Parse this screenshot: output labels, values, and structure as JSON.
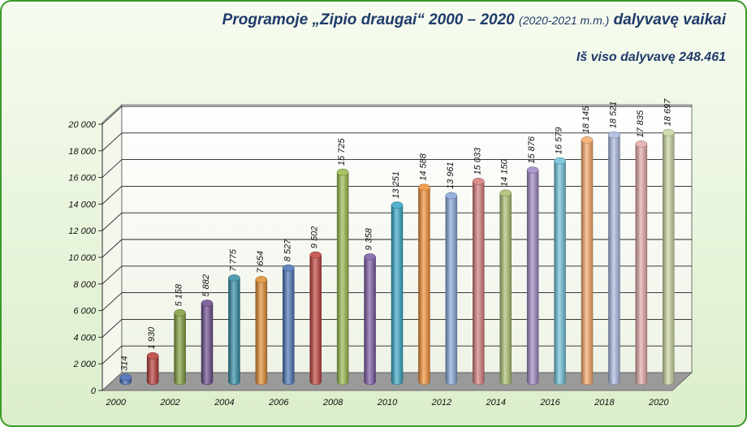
{
  "header": {
    "title_main": "Programoje „Zipio draugai“ 2000 – 2020",
    "title_sub": "(2020-2021 m.m.)",
    "title_end": "dalyvavę vaikai",
    "total": "Iš viso dalyvavę 248.461"
  },
  "chart_data": {
    "type": "bar",
    "title": "Programoje „Zipio draugai“ 2000 – 2020 (2020-2021 m.m.) dalyvavę vaikai",
    "categories": [
      "2000",
      "2001",
      "2002",
      "2003",
      "2004",
      "2005",
      "2006",
      "2007",
      "2008",
      "2009",
      "2010",
      "2011",
      "2012",
      "2013",
      "2014",
      "2015",
      "2016",
      "2017",
      "2018",
      "2019",
      "2020"
    ],
    "values": [
      314,
      1930,
      5158,
      5882,
      7775,
      7654,
      8527,
      9502,
      15725,
      9358,
      13251,
      14588,
      13961,
      15033,
      14150,
      15876,
      16579,
      18145,
      18521,
      17835,
      18697
    ],
    "value_labels": [
      "314",
      "1 930",
      "5 158",
      "5 882",
      "7 775",
      "7 654",
      "8 527",
      "9 502",
      "15 725",
      "9 358",
      "13 251",
      "14 588",
      "13 961",
      "15 033",
      "14 150",
      "15 876",
      "16 579",
      "18 145",
      "18 521",
      "17 835",
      "18 697"
    ],
    "x_tick_labels": [
      "2000",
      "",
      "2002",
      "",
      "2004",
      "",
      "2006",
      "",
      "2008",
      "",
      "2010",
      "",
      "2012",
      "",
      "2014",
      "",
      "2016",
      "",
      "2018",
      "",
      "2020"
    ],
    "y_ticks": [
      "0",
      "2 000",
      "4 000",
      "6 000",
      "8 000",
      "10 000",
      "12 000",
      "14 000",
      "16 000",
      "18 000",
      "20 000"
    ],
    "ylim": [
      0,
      20000
    ],
    "grid": true,
    "colors": [
      "#3f67b0",
      "#b53a36",
      "#7f9c3a",
      "#6a4a8c",
      "#2f8ca6",
      "#e08a30",
      "#4a73b5",
      "#c0413d",
      "#98b84a",
      "#7a58a2",
      "#36a6c4",
      "#f28e34",
      "#87a5d8",
      "#d37a78",
      "#a9c070",
      "#9c86c2",
      "#6cc0d8",
      "#f6a868",
      "#aab8e0",
      "#e2a8a6",
      "#c9d6a2"
    ]
  }
}
